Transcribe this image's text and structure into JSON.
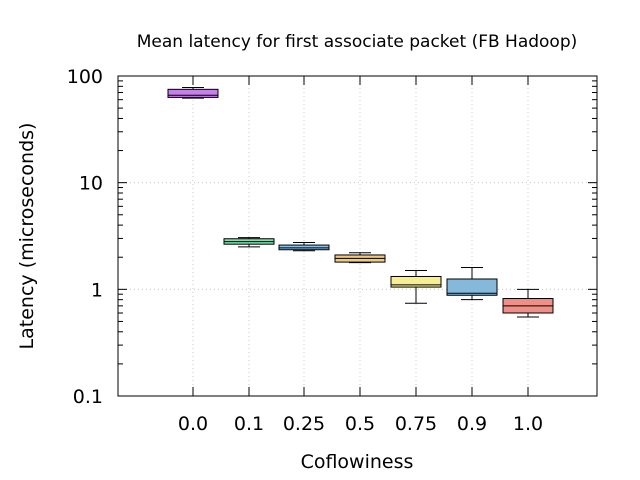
{
  "chart_data": {
    "type": "box",
    "title": "Mean latency for first associate packet (FB Hadoop)",
    "xlabel": "Coflowiness",
    "ylabel": "Latency (microseconds)",
    "yscale": "log",
    "ylim": [
      0.1,
      100
    ],
    "y_ticks": [
      "0.1",
      "1",
      "10",
      "100"
    ],
    "grid": true,
    "categories": [
      "0.0",
      "0.1",
      "0.25",
      "0.5",
      "0.75",
      "0.9",
      "1.0"
    ],
    "boxes": [
      {
        "category": "0.0",
        "whisker_low": 62,
        "q1": 63,
        "median": 66,
        "q3": 75,
        "whisker_high": 78,
        "color": "#c680e8"
      },
      {
        "category": "0.1",
        "whisker_low": 2.5,
        "q1": 2.65,
        "median": 2.8,
        "q3": 2.98,
        "whisker_high": 3.05,
        "color": "#7ee0b1"
      },
      {
        "category": "0.25",
        "whisker_low": 2.3,
        "q1": 2.35,
        "median": 2.45,
        "q3": 2.6,
        "whisker_high": 2.75,
        "color": "#8ec1ea"
      },
      {
        "category": "0.5",
        "whisker_low": 1.78,
        "q1": 1.8,
        "median": 1.95,
        "q3": 2.1,
        "whisker_high": 2.2,
        "color": "#f2c87e"
      },
      {
        "category": "0.75",
        "whisker_low": 0.74,
        "q1": 1.05,
        "median": 1.1,
        "q3": 1.32,
        "whisker_high": 1.5,
        "color": "#f7ee92"
      },
      {
        "category": "0.9",
        "whisker_low": 0.8,
        "q1": 0.88,
        "median": 0.92,
        "q3": 1.25,
        "whisker_high": 1.6,
        "color": "#86b8d9"
      },
      {
        "category": "1.0",
        "whisker_low": 0.55,
        "q1": 0.6,
        "median": 0.7,
        "q3": 0.82,
        "whisker_high": 1.0,
        "color": "#f08f88"
      }
    ]
  }
}
